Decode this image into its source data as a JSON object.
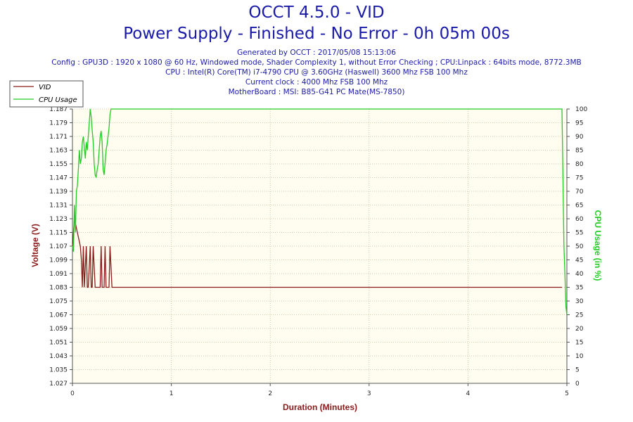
{
  "header": {
    "title": "OCCT 4.5.0 - VID",
    "subtitle": "Power Supply - Finished - No Error - 0h 05m 00s",
    "info_lines": [
      "Generated by OCCT : 2017/05/08 15:13:06",
      "Config : GPU3D : 1920 x 1080 @ 60 Hz, Windowed mode, Shader Complexity 1, without Error Checking ; CPU:Linpack : 64bits mode, 8772.3MB",
      "CPU : Intel(R) Core(TM) i7-4790 CPU @ 3.60GHz (Haswell) 3600 Mhz FSB 100 Mhz",
      "Current clock : 4000 Mhz FSB 100 Mhz",
      "MotherBoard : MSI: B85-G41 PC Mate(MS-7850)"
    ]
  },
  "chart_data": {
    "type": "line",
    "xlabel": "Duration (Minutes)",
    "ylabel": "Voltage (V)",
    "y2label": "CPU Usage (in %)",
    "xlim": [
      0,
      5
    ],
    "ylim": [
      1.027,
      1.187
    ],
    "y2lim": [
      0,
      100
    ],
    "x_ticks": [
      "0",
      "1",
      "2",
      "3",
      "4",
      "5"
    ],
    "y_ticks": [
      "1.027",
      "1.035",
      "1.043",
      "1.051",
      "1.059",
      "1.067",
      "1.075",
      "1.083",
      "1.091",
      "1.099",
      "1.107",
      "1.115",
      "1.123",
      "1.131",
      "1.139",
      "1.147",
      "1.155",
      "1.163",
      "1.171",
      "1.179",
      "1.187"
    ],
    "y2_ticks": [
      "0",
      "5",
      "10",
      "15",
      "20",
      "25",
      "30",
      "35",
      "40",
      "45",
      "50",
      "55",
      "60",
      "65",
      "70",
      "75",
      "80",
      "85",
      "90",
      "95",
      "100"
    ],
    "grid": true,
    "legend_position": "top-left",
    "colors": {
      "VID": "#8b1a1a",
      "CPU Usage": "#22cc22",
      "grid": "#c8b89a",
      "plot_bg": "#fffcf0"
    },
    "series": [
      {
        "name": "VID",
        "axis": "left",
        "x": [
          0,
          0.02,
          0.05,
          0.08,
          0.09,
          0.1,
          0.11,
          0.12,
          0.14,
          0.15,
          0.16,
          0.18,
          0.19,
          0.2,
          0.21,
          0.23,
          0.24,
          0.25,
          0.26,
          0.28,
          0.29,
          0.3,
          0.32,
          0.33,
          0.34,
          0.36,
          0.37,
          0.38,
          0.4,
          0.41,
          0.5,
          1.0,
          2.0,
          3.0,
          4.0,
          4.95
        ],
        "values": [
          1.107,
          1.123,
          1.115,
          1.107,
          1.099,
          1.083,
          1.107,
          1.083,
          1.107,
          1.083,
          1.083,
          1.107,
          1.083,
          1.083,
          1.107,
          1.083,
          1.083,
          1.083,
          1.083,
          1.083,
          1.107,
          1.083,
          1.083,
          1.107,
          1.083,
          1.083,
          1.083,
          1.107,
          1.083,
          1.083,
          1.083,
          1.083,
          1.083,
          1.083,
          1.083,
          1.083
        ]
      },
      {
        "name": "CPU Usage",
        "axis": "right",
        "x": [
          0,
          0.01,
          0.02,
          0.03,
          0.04,
          0.05,
          0.06,
          0.07,
          0.08,
          0.09,
          0.1,
          0.11,
          0.12,
          0.13,
          0.14,
          0.15,
          0.16,
          0.17,
          0.18,
          0.19,
          0.2,
          0.21,
          0.22,
          0.23,
          0.24,
          0.25,
          0.26,
          0.27,
          0.28,
          0.29,
          0.3,
          0.31,
          0.32,
          0.33,
          0.34,
          0.35,
          0.36,
          0.37,
          0.38,
          0.39,
          0.4,
          0.41,
          1.0,
          2.0,
          3.0,
          4.0,
          4.95,
          4.96,
          4.97,
          4.98,
          4.99,
          5.0
        ],
        "values": [
          50,
          48,
          65,
          55,
          70,
          72,
          78,
          85,
          80,
          82,
          88,
          90,
          86,
          82,
          88,
          85,
          90,
          95,
          100,
          97,
          92,
          88,
          80,
          76,
          75,
          78,
          80,
          85,
          90,
          92,
          88,
          78,
          76,
          80,
          85,
          87,
          90,
          93,
          98,
          100,
          100,
          100,
          100,
          100,
          100,
          100,
          100,
          75,
          50,
          40,
          28,
          25
        ]
      }
    ]
  }
}
